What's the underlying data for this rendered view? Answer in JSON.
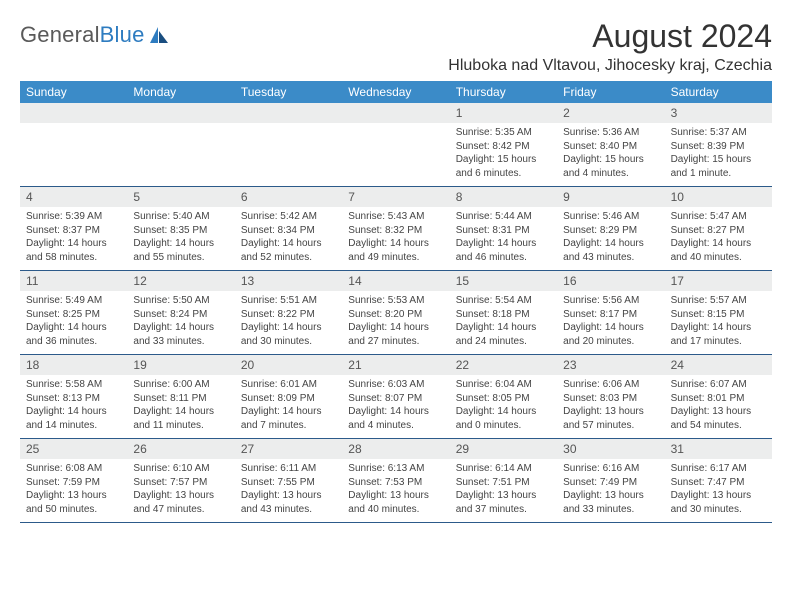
{
  "brand": {
    "name_gray": "General",
    "name_blue": "Blue"
  },
  "title": "August 2024",
  "location": "Hluboka nad Vltavou, Jihocesky kraj, Czechia",
  "colors": {
    "header_bg": "#3b8bc8",
    "header_text": "#ffffff",
    "daynum_bg": "#eceded",
    "rule": "#2c5a8a",
    "body_text": "#444444",
    "brand_gray": "#5a5a5a",
    "brand_blue": "#2e7cc0"
  },
  "days_of_week": [
    "Sunday",
    "Monday",
    "Tuesday",
    "Wednesday",
    "Thursday",
    "Friday",
    "Saturday"
  ],
  "weeks": [
    [
      {
        "n": "",
        "sunrise": "",
        "sunset": "",
        "daylight": ""
      },
      {
        "n": "",
        "sunrise": "",
        "sunset": "",
        "daylight": ""
      },
      {
        "n": "",
        "sunrise": "",
        "sunset": "",
        "daylight": ""
      },
      {
        "n": "",
        "sunrise": "",
        "sunset": "",
        "daylight": ""
      },
      {
        "n": "1",
        "sunrise": "Sunrise: 5:35 AM",
        "sunset": "Sunset: 8:42 PM",
        "daylight": "Daylight: 15 hours\nand 6 minutes."
      },
      {
        "n": "2",
        "sunrise": "Sunrise: 5:36 AM",
        "sunset": "Sunset: 8:40 PM",
        "daylight": "Daylight: 15 hours\nand 4 minutes."
      },
      {
        "n": "3",
        "sunrise": "Sunrise: 5:37 AM",
        "sunset": "Sunset: 8:39 PM",
        "daylight": "Daylight: 15 hours\nand 1 minute."
      }
    ],
    [
      {
        "n": "4",
        "sunrise": "Sunrise: 5:39 AM",
        "sunset": "Sunset: 8:37 PM",
        "daylight": "Daylight: 14 hours\nand 58 minutes."
      },
      {
        "n": "5",
        "sunrise": "Sunrise: 5:40 AM",
        "sunset": "Sunset: 8:35 PM",
        "daylight": "Daylight: 14 hours\nand 55 minutes."
      },
      {
        "n": "6",
        "sunrise": "Sunrise: 5:42 AM",
        "sunset": "Sunset: 8:34 PM",
        "daylight": "Daylight: 14 hours\nand 52 minutes."
      },
      {
        "n": "7",
        "sunrise": "Sunrise: 5:43 AM",
        "sunset": "Sunset: 8:32 PM",
        "daylight": "Daylight: 14 hours\nand 49 minutes."
      },
      {
        "n": "8",
        "sunrise": "Sunrise: 5:44 AM",
        "sunset": "Sunset: 8:31 PM",
        "daylight": "Daylight: 14 hours\nand 46 minutes."
      },
      {
        "n": "9",
        "sunrise": "Sunrise: 5:46 AM",
        "sunset": "Sunset: 8:29 PM",
        "daylight": "Daylight: 14 hours\nand 43 minutes."
      },
      {
        "n": "10",
        "sunrise": "Sunrise: 5:47 AM",
        "sunset": "Sunset: 8:27 PM",
        "daylight": "Daylight: 14 hours\nand 40 minutes."
      }
    ],
    [
      {
        "n": "11",
        "sunrise": "Sunrise: 5:49 AM",
        "sunset": "Sunset: 8:25 PM",
        "daylight": "Daylight: 14 hours\nand 36 minutes."
      },
      {
        "n": "12",
        "sunrise": "Sunrise: 5:50 AM",
        "sunset": "Sunset: 8:24 PM",
        "daylight": "Daylight: 14 hours\nand 33 minutes."
      },
      {
        "n": "13",
        "sunrise": "Sunrise: 5:51 AM",
        "sunset": "Sunset: 8:22 PM",
        "daylight": "Daylight: 14 hours\nand 30 minutes."
      },
      {
        "n": "14",
        "sunrise": "Sunrise: 5:53 AM",
        "sunset": "Sunset: 8:20 PM",
        "daylight": "Daylight: 14 hours\nand 27 minutes."
      },
      {
        "n": "15",
        "sunrise": "Sunrise: 5:54 AM",
        "sunset": "Sunset: 8:18 PM",
        "daylight": "Daylight: 14 hours\nand 24 minutes."
      },
      {
        "n": "16",
        "sunrise": "Sunrise: 5:56 AM",
        "sunset": "Sunset: 8:17 PM",
        "daylight": "Daylight: 14 hours\nand 20 minutes."
      },
      {
        "n": "17",
        "sunrise": "Sunrise: 5:57 AM",
        "sunset": "Sunset: 8:15 PM",
        "daylight": "Daylight: 14 hours\nand 17 minutes."
      }
    ],
    [
      {
        "n": "18",
        "sunrise": "Sunrise: 5:58 AM",
        "sunset": "Sunset: 8:13 PM",
        "daylight": "Daylight: 14 hours\nand 14 minutes."
      },
      {
        "n": "19",
        "sunrise": "Sunrise: 6:00 AM",
        "sunset": "Sunset: 8:11 PM",
        "daylight": "Daylight: 14 hours\nand 11 minutes."
      },
      {
        "n": "20",
        "sunrise": "Sunrise: 6:01 AM",
        "sunset": "Sunset: 8:09 PM",
        "daylight": "Daylight: 14 hours\nand 7 minutes."
      },
      {
        "n": "21",
        "sunrise": "Sunrise: 6:03 AM",
        "sunset": "Sunset: 8:07 PM",
        "daylight": "Daylight: 14 hours\nand 4 minutes."
      },
      {
        "n": "22",
        "sunrise": "Sunrise: 6:04 AM",
        "sunset": "Sunset: 8:05 PM",
        "daylight": "Daylight: 14 hours\nand 0 minutes."
      },
      {
        "n": "23",
        "sunrise": "Sunrise: 6:06 AM",
        "sunset": "Sunset: 8:03 PM",
        "daylight": "Daylight: 13 hours\nand 57 minutes."
      },
      {
        "n": "24",
        "sunrise": "Sunrise: 6:07 AM",
        "sunset": "Sunset: 8:01 PM",
        "daylight": "Daylight: 13 hours\nand 54 minutes."
      }
    ],
    [
      {
        "n": "25",
        "sunrise": "Sunrise: 6:08 AM",
        "sunset": "Sunset: 7:59 PM",
        "daylight": "Daylight: 13 hours\nand 50 minutes."
      },
      {
        "n": "26",
        "sunrise": "Sunrise: 6:10 AM",
        "sunset": "Sunset: 7:57 PM",
        "daylight": "Daylight: 13 hours\nand 47 minutes."
      },
      {
        "n": "27",
        "sunrise": "Sunrise: 6:11 AM",
        "sunset": "Sunset: 7:55 PM",
        "daylight": "Daylight: 13 hours\nand 43 minutes."
      },
      {
        "n": "28",
        "sunrise": "Sunrise: 6:13 AM",
        "sunset": "Sunset: 7:53 PM",
        "daylight": "Daylight: 13 hours\nand 40 minutes."
      },
      {
        "n": "29",
        "sunrise": "Sunrise: 6:14 AM",
        "sunset": "Sunset: 7:51 PM",
        "daylight": "Daylight: 13 hours\nand 37 minutes."
      },
      {
        "n": "30",
        "sunrise": "Sunrise: 6:16 AM",
        "sunset": "Sunset: 7:49 PM",
        "daylight": "Daylight: 13 hours\nand 33 minutes."
      },
      {
        "n": "31",
        "sunrise": "Sunrise: 6:17 AM",
        "sunset": "Sunset: 7:47 PM",
        "daylight": "Daylight: 13 hours\nand 30 minutes."
      }
    ]
  ]
}
